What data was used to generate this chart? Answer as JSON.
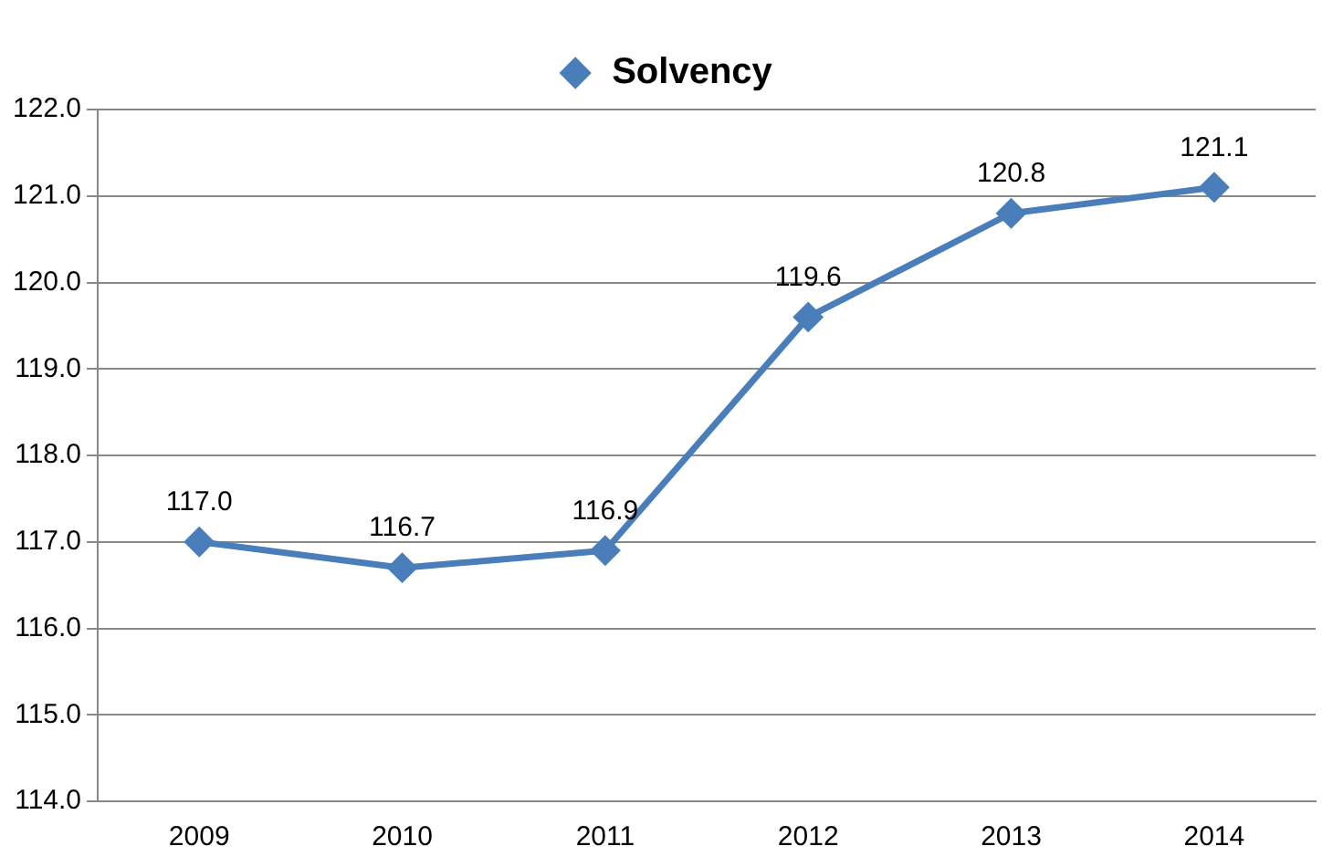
{
  "chart_data": {
    "type": "line",
    "categories": [
      "2009",
      "2010",
      "2011",
      "2012",
      "2013",
      "2014"
    ],
    "series": [
      {
        "name": "Solvency",
        "color": "#4a7ebb",
        "values": [
          117.0,
          116.7,
          116.9,
          119.6,
          120.8,
          121.1
        ],
        "value_labels": [
          "117.0",
          "116.7",
          "116.9",
          "119.6",
          "120.8",
          "121.1"
        ]
      }
    ],
    "ylim": [
      114,
      122
    ],
    "yticks": [
      {
        "value": 114,
        "label": "114.0"
      },
      {
        "value": 115,
        "label": "115.0"
      },
      {
        "value": 116,
        "label": "116.0"
      },
      {
        "value": 117,
        "label": "117.0"
      },
      {
        "value": 118,
        "label": "118.0"
      },
      {
        "value": 119,
        "label": "119.0"
      },
      {
        "value": 120,
        "label": "120.0"
      },
      {
        "value": 121,
        "label": "121.0"
      },
      {
        "value": 122,
        "label": "122.0"
      }
    ],
    "grid": "y",
    "legend": "top",
    "marker": "diamond",
    "line_style": "solid"
  }
}
